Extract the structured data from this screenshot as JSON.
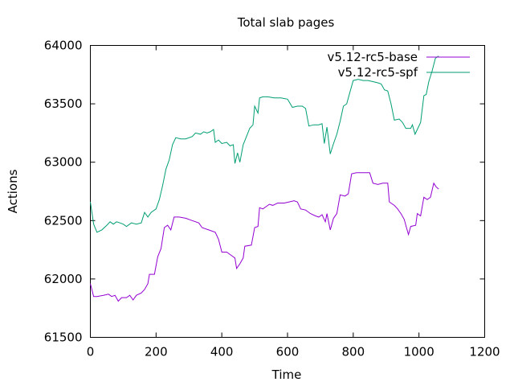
{
  "chart_data": {
    "type": "line",
    "title": "Total slab pages",
    "xlabel": "Time",
    "ylabel": "Actions",
    "xlim": [
      0,
      1200
    ],
    "ylim": [
      61500,
      64000
    ],
    "xticks": [
      0,
      200,
      400,
      600,
      800,
      1000,
      1200
    ],
    "yticks": [
      61500,
      62000,
      62500,
      63000,
      63500,
      64000
    ],
    "grid": false,
    "legend_position": "top-right",
    "series": [
      {
        "name": "v5.12-rc5-base",
        "color": "#9400d3",
        "points": [
          [
            0,
            61960
          ],
          [
            10,
            61850
          ],
          [
            20,
            61850
          ],
          [
            40,
            61860
          ],
          [
            55,
            61870
          ],
          [
            65,
            61850
          ],
          [
            75,
            61860
          ],
          [
            85,
            61810
          ],
          [
            95,
            61840
          ],
          [
            110,
            61840
          ],
          [
            120,
            61860
          ],
          [
            130,
            61820
          ],
          [
            140,
            61860
          ],
          [
            155,
            61880
          ],
          [
            165,
            61910
          ],
          [
            175,
            61960
          ],
          [
            180,
            62040
          ],
          [
            195,
            62040
          ],
          [
            205,
            62190
          ],
          [
            215,
            62260
          ],
          [
            225,
            62440
          ],
          [
            235,
            62460
          ],
          [
            245,
            62420
          ],
          [
            255,
            62530
          ],
          [
            270,
            62530
          ],
          [
            290,
            62520
          ],
          [
            310,
            62500
          ],
          [
            330,
            62480
          ],
          [
            340,
            62440
          ],
          [
            360,
            62420
          ],
          [
            380,
            62400
          ],
          [
            390,
            62340
          ],
          [
            400,
            62230
          ],
          [
            415,
            62230
          ],
          [
            430,
            62200
          ],
          [
            440,
            62180
          ],
          [
            445,
            62090
          ],
          [
            455,
            62130
          ],
          [
            465,
            62180
          ],
          [
            470,
            62280
          ],
          [
            490,
            62290
          ],
          [
            500,
            62440
          ],
          [
            510,
            62450
          ],
          [
            515,
            62610
          ],
          [
            525,
            62600
          ],
          [
            535,
            62620
          ],
          [
            545,
            62640
          ],
          [
            555,
            62630
          ],
          [
            570,
            62650
          ],
          [
            590,
            62650
          ],
          [
            605,
            62660
          ],
          [
            620,
            62670
          ],
          [
            630,
            62660
          ],
          [
            640,
            62600
          ],
          [
            655,
            62590
          ],
          [
            670,
            62560
          ],
          [
            685,
            62540
          ],
          [
            695,
            62530
          ],
          [
            705,
            62550
          ],
          [
            715,
            62490
          ],
          [
            720,
            62560
          ],
          [
            730,
            62420
          ],
          [
            740,
            62520
          ],
          [
            750,
            62560
          ],
          [
            760,
            62720
          ],
          [
            775,
            62710
          ],
          [
            785,
            62730
          ],
          [
            795,
            62900
          ],
          [
            810,
            62910
          ],
          [
            840,
            62910
          ],
          [
            850,
            62910
          ],
          [
            860,
            62820
          ],
          [
            875,
            62810
          ],
          [
            890,
            62820
          ],
          [
            905,
            62820
          ],
          [
            910,
            62660
          ],
          [
            925,
            62630
          ],
          [
            935,
            62600
          ],
          [
            945,
            62560
          ],
          [
            955,
            62510
          ],
          [
            962,
            62440
          ],
          [
            968,
            62380
          ],
          [
            975,
            62450
          ],
          [
            990,
            62460
          ],
          [
            995,
            62560
          ],
          [
            1005,
            62540
          ],
          [
            1015,
            62700
          ],
          [
            1025,
            62680
          ],
          [
            1035,
            62700
          ],
          [
            1045,
            62820
          ],
          [
            1052,
            62790
          ],
          [
            1060,
            62770
          ]
        ]
      },
      {
        "name": "v5.12-rc5-spf",
        "color": "#009e73",
        "points": [
          [
            0,
            62660
          ],
          [
            10,
            62470
          ],
          [
            20,
            62400
          ],
          [
            35,
            62420
          ],
          [
            50,
            62460
          ],
          [
            60,
            62490
          ],
          [
            70,
            62470
          ],
          [
            80,
            62490
          ],
          [
            90,
            62480
          ],
          [
            100,
            62470
          ],
          [
            110,
            62450
          ],
          [
            125,
            62480
          ],
          [
            140,
            62470
          ],
          [
            155,
            62480
          ],
          [
            165,
            62570
          ],
          [
            175,
            62530
          ],
          [
            185,
            62570
          ],
          [
            200,
            62600
          ],
          [
            210,
            62680
          ],
          [
            220,
            62800
          ],
          [
            230,
            62940
          ],
          [
            240,
            63020
          ],
          [
            250,
            63150
          ],
          [
            260,
            63210
          ],
          [
            275,
            63200
          ],
          [
            290,
            63200
          ],
          [
            310,
            63220
          ],
          [
            320,
            63250
          ],
          [
            335,
            63240
          ],
          [
            345,
            63260
          ],
          [
            355,
            63250
          ],
          [
            365,
            63260
          ],
          [
            375,
            63280
          ],
          [
            380,
            63170
          ],
          [
            390,
            63190
          ],
          [
            400,
            63160
          ],
          [
            415,
            63170
          ],
          [
            425,
            63140
          ],
          [
            435,
            63150
          ],
          [
            440,
            62990
          ],
          [
            448,
            63080
          ],
          [
            455,
            63000
          ],
          [
            465,
            63150
          ],
          [
            475,
            63220
          ],
          [
            485,
            63290
          ],
          [
            495,
            63320
          ],
          [
            500,
            63480
          ],
          [
            510,
            63420
          ],
          [
            515,
            63550
          ],
          [
            525,
            63560
          ],
          [
            540,
            63560
          ],
          [
            560,
            63550
          ],
          [
            580,
            63550
          ],
          [
            600,
            63540
          ],
          [
            615,
            63470
          ],
          [
            630,
            63480
          ],
          [
            645,
            63480
          ],
          [
            655,
            63460
          ],
          [
            665,
            63310
          ],
          [
            680,
            63320
          ],
          [
            695,
            63320
          ],
          [
            705,
            63330
          ],
          [
            712,
            63160
          ],
          [
            720,
            63300
          ],
          [
            730,
            63070
          ],
          [
            740,
            63160
          ],
          [
            750,
            63240
          ],
          [
            760,
            63350
          ],
          [
            770,
            63480
          ],
          [
            780,
            63500
          ],
          [
            790,
            63600
          ],
          [
            800,
            63700
          ],
          [
            815,
            63710
          ],
          [
            830,
            63700
          ],
          [
            845,
            63700
          ],
          [
            860,
            63690
          ],
          [
            875,
            63680
          ],
          [
            885,
            63670
          ],
          [
            895,
            63620
          ],
          [
            905,
            63610
          ],
          [
            915,
            63500
          ],
          [
            925,
            63360
          ],
          [
            940,
            63370
          ],
          [
            950,
            63340
          ],
          [
            960,
            63290
          ],
          [
            975,
            63290
          ],
          [
            980,
            63320
          ],
          [
            988,
            63240
          ],
          [
            995,
            63280
          ],
          [
            1005,
            63340
          ],
          [
            1015,
            63570
          ],
          [
            1022,
            63580
          ],
          [
            1030,
            63690
          ],
          [
            1040,
            63780
          ],
          [
            1050,
            63890
          ],
          [
            1060,
            63910
          ]
        ]
      }
    ]
  }
}
